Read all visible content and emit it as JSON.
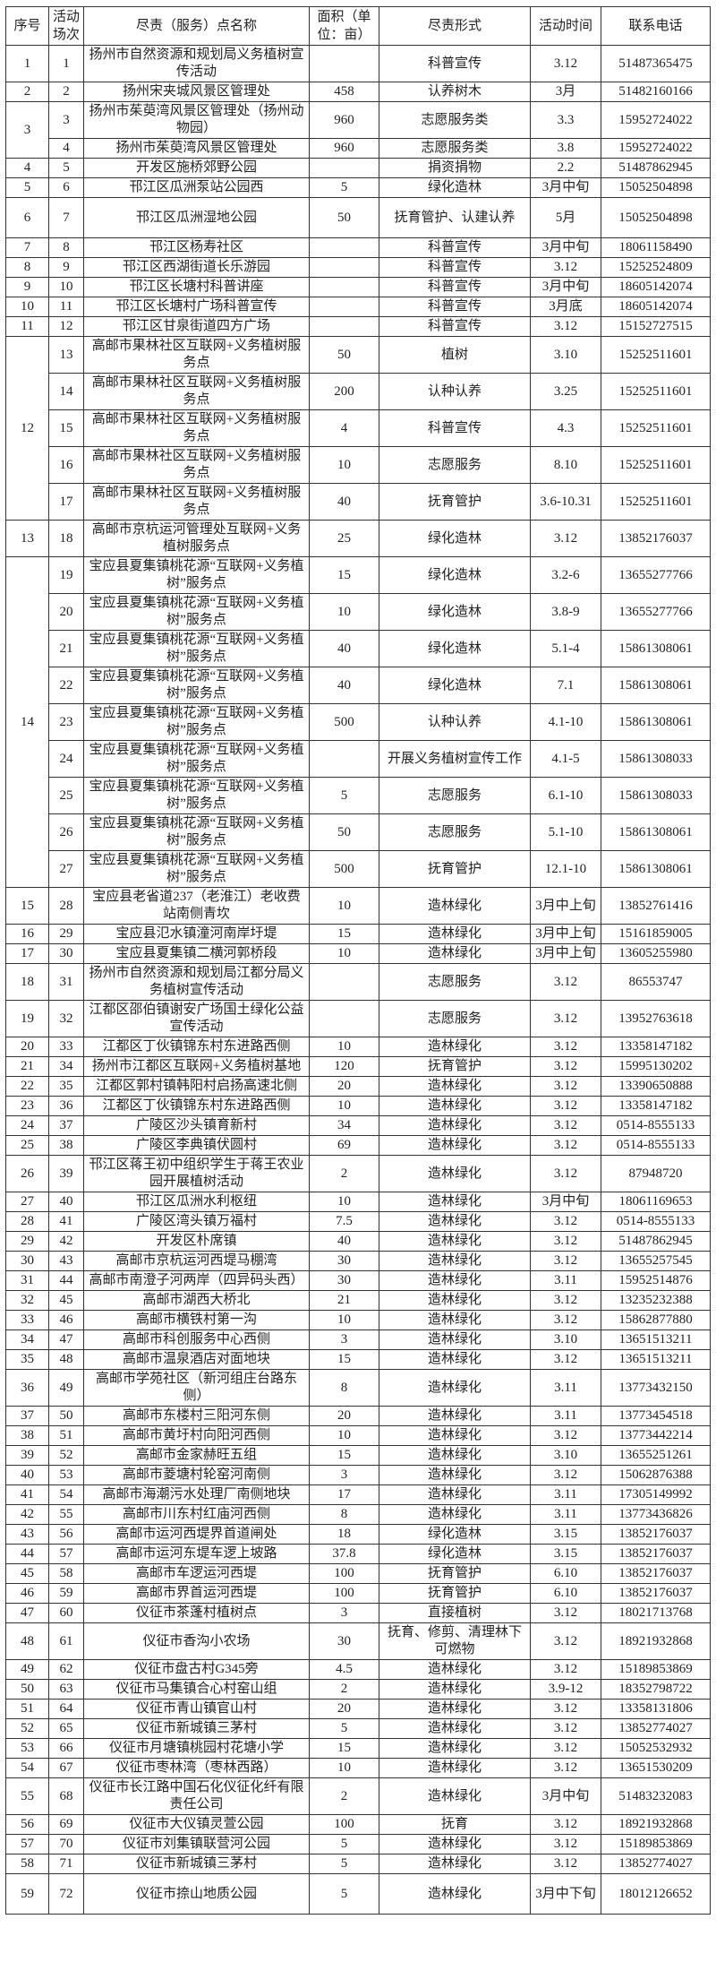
{
  "table": {
    "headers": [
      "序号",
      "活动场次",
      "尽责（服务）点名称",
      "面积（单位：亩）",
      "尽责形式",
      "活动时间",
      "联系电话"
    ],
    "groups": [
      {
        "seq": "1",
        "items": [
          [
            "1",
            "扬州市自然资源和规划局义务植树宣传活动",
            "",
            "科普宣传",
            "3.12",
            "51487365475"
          ]
        ]
      },
      {
        "seq": "2",
        "items": [
          [
            "2",
            "扬州宋夹城风景区管理处",
            "458",
            "认养树木",
            "3月",
            "51482160166"
          ]
        ]
      },
      {
        "seq": "3",
        "items": [
          [
            "3",
            "扬州市茱萸湾风景区管理处（扬州动物园）",
            "960",
            "志愿服务类",
            "3.3",
            "15952724022"
          ],
          [
            "4",
            "扬州市茱萸湾风景区管理处",
            "960",
            "志愿服务类",
            "3.8",
            "15952724022"
          ]
        ]
      },
      {
        "seq": "4",
        "items": [
          [
            "5",
            "开发区施桥郊野公园",
            "",
            "捐资捐物",
            "2.2",
            "51487862945"
          ]
        ]
      },
      {
        "seq": "5",
        "items": [
          [
            "6",
            "邗江区瓜洲泵站公园西",
            "5",
            "绿化造林",
            "3月中旬",
            "15052504898"
          ]
        ]
      },
      {
        "seq": "6",
        "items": [
          [
            "7",
            "邗江区瓜洲湿地公园",
            "50",
            "抚育管护、认建认养",
            "5月",
            "15052504898"
          ]
        ]
      },
      {
        "seq": "7",
        "items": [
          [
            "8",
            "邗江区杨寿社区",
            "",
            "科普宣传",
            "3月中旬",
            "18061158490"
          ]
        ]
      },
      {
        "seq": "8",
        "items": [
          [
            "9",
            "邗江区西湖街道长乐游园",
            "",
            "科普宣传",
            "3.12",
            "15252524809"
          ]
        ]
      },
      {
        "seq": "9",
        "items": [
          [
            "10",
            "邗江区长塘村科普讲座",
            "",
            "科普宣传",
            "3月中旬",
            "18605142074"
          ]
        ]
      },
      {
        "seq": "10",
        "items": [
          [
            "11",
            "邗江区长塘村广场科普宣传",
            "",
            "科普宣传",
            "3月底",
            "18605142074"
          ]
        ]
      },
      {
        "seq": "11",
        "items": [
          [
            "12",
            "邗江区甘泉街道四方广场",
            "",
            "科普宣传",
            "3.12",
            "15152727515"
          ]
        ]
      },
      {
        "seq": "12",
        "items": [
          [
            "13",
            "高邮市果林社区互联网+义务植树服务点",
            "50",
            "植树",
            "3.10",
            "15252511601"
          ],
          [
            "14",
            "高邮市果林社区互联网+义务植树服务点",
            "200",
            "认种认养",
            "3.25",
            "15252511601"
          ],
          [
            "15",
            "高邮市果林社区互联网+义务植树服务点",
            "4",
            "科普宣传",
            "4.3",
            "15252511601"
          ],
          [
            "16",
            "高邮市果林社区互联网+义务植树服务点",
            "10",
            "志愿服务",
            "8.10",
            "15252511601"
          ],
          [
            "17",
            "高邮市果林社区互联网+义务植树服务点",
            "40",
            "抚育管护",
            "3.6-10.31",
            "15252511601"
          ]
        ]
      },
      {
        "seq": "13",
        "items": [
          [
            "18",
            "高邮市京杭运河管理处互联网+义务植树服务点",
            "25",
            "绿化造林",
            "3.12",
            "13852176037"
          ]
        ]
      },
      {
        "seq": "14",
        "items": [
          [
            "19",
            "宝应县夏集镇桃花源“互联网+义务植树”服务点",
            "15",
            "绿化造林",
            "3.2-6",
            "13655277766"
          ],
          [
            "20",
            "宝应县夏集镇桃花源“互联网+义务植树”服务点",
            "10",
            "绿化造林",
            "3.8-9",
            "13655277766"
          ],
          [
            "21",
            "宝应县夏集镇桃花源“互联网+义务植树”服务点",
            "40",
            "绿化造林",
            "5.1-4",
            "15861308061"
          ],
          [
            "22",
            "宝应县夏集镇桃花源“互联网+义务植树”服务点",
            "40",
            "绿化造林",
            "7.1",
            "15861308061"
          ],
          [
            "23",
            "宝应县夏集镇桃花源“互联网+义务植树”服务点",
            "500",
            "认种认养",
            "4.1-10",
            "15861308061"
          ],
          [
            "24",
            "宝应县夏集镇桃花源“互联网+义务植树”服务点",
            "",
            "开展义务植树宣传工作",
            "4.1-5",
            "15861308033"
          ],
          [
            "25",
            "宝应县夏集镇桃花源“互联网+义务植树”服务点",
            "5",
            "志愿服务",
            "6.1-10",
            "15861308033"
          ],
          [
            "26",
            "宝应县夏集镇桃花源“互联网+义务植树”服务点",
            "50",
            "志愿服务",
            "5.1-10",
            "15861308061"
          ],
          [
            "27",
            "宝应县夏集镇桃花源“互联网+义务植树”服务点",
            "500",
            "抚育管护",
            "12.1-10",
            "15861308061"
          ]
        ]
      },
      {
        "seq": "15",
        "items": [
          [
            "28",
            "宝应县老省道237（老淮江）老收费站南侧青坎",
            "10",
            "造林绿化",
            "3月中上旬",
            "13852761416"
          ]
        ]
      },
      {
        "seq": "16",
        "items": [
          [
            "29",
            "宝应县氾水镇潼河南岸圩堤",
            "15",
            "造林绿化",
            "3月中上旬",
            "15161859005"
          ]
        ]
      },
      {
        "seq": "17",
        "items": [
          [
            "30",
            "宝应县夏集镇二横河郭桥段",
            "10",
            "造林绿化",
            "3月中上旬",
            "13605255980"
          ]
        ]
      },
      {
        "seq": "18",
        "items": [
          [
            "31",
            "扬州市自然资源和规划局江都分局义务植树宣传活动",
            "",
            "志愿服务",
            "3.12",
            "86553747"
          ]
        ]
      },
      {
        "seq": "19",
        "items": [
          [
            "32",
            "江都区邵伯镇谢安广场国土绿化公益宣传活动",
            "",
            "志愿服务",
            "3.12",
            "13952763618"
          ]
        ]
      },
      {
        "seq": "20",
        "items": [
          [
            "33",
            "江都区丁伙镇锦东村东进路西侧",
            "10",
            "造林绿化",
            "3.12",
            "13358147182"
          ]
        ]
      },
      {
        "seq": "21",
        "items": [
          [
            "34",
            "扬州市江都区互联网+义务植树基地",
            "120",
            "抚育管护",
            "3.12",
            "15995130202"
          ]
        ]
      },
      {
        "seq": "22",
        "items": [
          [
            "35",
            "江都区郭村镇韩阳村启扬高速北侧",
            "20",
            "造林绿化",
            "3.12",
            "13390650888"
          ]
        ]
      },
      {
        "seq": "23",
        "items": [
          [
            "36",
            "江都区丁伙镇锦东村东进路西侧",
            "10",
            "造林绿化",
            "3.12",
            "13358147182"
          ]
        ]
      },
      {
        "seq": "24",
        "items": [
          [
            "37",
            "广陵区沙头镇育新村",
            "34",
            "造林绿化",
            "3.12",
            "0514-8555133"
          ]
        ]
      },
      {
        "seq": "25",
        "items": [
          [
            "38",
            "广陵区李典镇伏圆村",
            "69",
            "造林绿化",
            "3.12",
            "0514-8555133"
          ]
        ]
      },
      {
        "seq": "26",
        "items": [
          [
            "39",
            "邗江区蒋王初中组织学生于蒋王农业园开展植树活动",
            "2",
            "造林绿化",
            "3.12",
            "87948720"
          ]
        ]
      },
      {
        "seq": "27",
        "items": [
          [
            "40",
            "邗江区瓜洲水利枢纽",
            "10",
            "造林绿化",
            "3月中旬",
            "18061169653"
          ]
        ]
      },
      {
        "seq": "28",
        "items": [
          [
            "41",
            "广陵区湾头镇万福村",
            "7.5",
            "造林绿化",
            "3.12",
            "0514-8555133"
          ]
        ]
      },
      {
        "seq": "29",
        "items": [
          [
            "42",
            "开发区朴席镇",
            "40",
            "造林绿化",
            "3.12",
            "51487862945"
          ]
        ]
      },
      {
        "seq": "30",
        "items": [
          [
            "43",
            "高邮市京杭运河西堤马棚湾",
            "30",
            "造林绿化",
            "3.12",
            "13655257545"
          ]
        ]
      },
      {
        "seq": "31",
        "items": [
          [
            "44",
            "高邮市南澄子河两岸（四异码头西）",
            "30",
            "造林绿化",
            "3.11",
            "15952514876"
          ]
        ]
      },
      {
        "seq": "32",
        "items": [
          [
            "45",
            "高邮市湖西大桥北",
            "21",
            "造林绿化",
            "3.12",
            "13235232388"
          ]
        ]
      },
      {
        "seq": "33",
        "items": [
          [
            "46",
            "高邮市横铁村第一沟",
            "10",
            "造林绿化",
            "3.12",
            "15862877880"
          ]
        ]
      },
      {
        "seq": "34",
        "items": [
          [
            "47",
            "高邮市科创服务中心西侧",
            "3",
            "造林绿化",
            "3.10",
            "13651513211"
          ]
        ]
      },
      {
        "seq": "35",
        "items": [
          [
            "48",
            "高邮市温泉酒店对面地块",
            "15",
            "造林绿化",
            "3.12",
            "13651513211"
          ]
        ]
      },
      {
        "seq": "36",
        "items": [
          [
            "49",
            "高邮市学苑社区（新河组庄台路东侧）",
            "8",
            "造林绿化",
            "3.11",
            "13773432150"
          ]
        ]
      },
      {
        "seq": "37",
        "items": [
          [
            "50",
            "高邮市东楼村三阳河东侧",
            "20",
            "造林绿化",
            "3.11",
            "13773454518"
          ]
        ]
      },
      {
        "seq": "38",
        "items": [
          [
            "51",
            "高邮市黄圩村向阳河西侧",
            "10",
            "造林绿化",
            "3.12",
            "13773442214"
          ]
        ]
      },
      {
        "seq": "39",
        "items": [
          [
            "52",
            "高邮市金家赫旺五组",
            "15",
            "造林绿化",
            "3.10",
            "13655251261"
          ]
        ]
      },
      {
        "seq": "40",
        "items": [
          [
            "53",
            "高邮市菱塘村轮窑河南侧",
            "3",
            "造林绿化",
            "3.12",
            "15062876388"
          ]
        ]
      },
      {
        "seq": "41",
        "items": [
          [
            "54",
            "高邮市海潮污水处理厂南侧地块",
            "17",
            "造林绿化",
            "3.11",
            "17305149992"
          ]
        ]
      },
      {
        "seq": "42",
        "items": [
          [
            "55",
            "高邮市川东村红庙河西侧",
            "8",
            "造林绿化",
            "3.11",
            "13773436826"
          ]
        ]
      },
      {
        "seq": "43",
        "items": [
          [
            "56",
            "高邮市运河西堤界首道闸处",
            "18",
            "绿化造林",
            "3.15",
            "13852176037"
          ]
        ]
      },
      {
        "seq": "44",
        "items": [
          [
            "57",
            "高邮市运河东堤车逻上坡路",
            "37.8",
            "绿化造林",
            "3.15",
            "13852176037"
          ]
        ]
      },
      {
        "seq": "45",
        "items": [
          [
            "58",
            "高邮市车逻运河西堤",
            "100",
            "抚育管护",
            "6.10",
            "13852176037"
          ]
        ]
      },
      {
        "seq": "46",
        "items": [
          [
            "59",
            "高邮市界首运河西堤",
            "100",
            "抚育管护",
            "6.10",
            "13852176037"
          ]
        ]
      },
      {
        "seq": "47",
        "items": [
          [
            "60",
            "仪征市茶蓬村植树点",
            "3",
            "直接植树",
            "3.12",
            "18021713768"
          ]
        ]
      },
      {
        "seq": "48",
        "items": [
          [
            "61",
            "仪征市香沟小农场",
            "30",
            "抚育、修剪、清理林下可燃物",
            "3.12",
            "18921932868"
          ]
        ]
      },
      {
        "seq": "49",
        "items": [
          [
            "62",
            "仪征市盘古村G345旁",
            "4.5",
            "造林绿化",
            "3.12",
            "15189853869"
          ]
        ]
      },
      {
        "seq": "50",
        "items": [
          [
            "63",
            "仪征市马集镇合心村窑山组",
            "2",
            "造林绿化",
            "3.9-12",
            "18352798722"
          ]
        ]
      },
      {
        "seq": "51",
        "items": [
          [
            "64",
            "仪征市青山镇官山村",
            "20",
            "造林绿化",
            "3.12",
            "13358131806"
          ]
        ]
      },
      {
        "seq": "52",
        "items": [
          [
            "65",
            "仪征市新城镇三茅村",
            "5",
            "造林绿化",
            "3.12",
            "13852774027"
          ]
        ]
      },
      {
        "seq": "53",
        "items": [
          [
            "66",
            "仪征市月塘镇桃园村花塘小学",
            "15",
            "造林绿化",
            "3.12",
            "15052532932"
          ]
        ]
      },
      {
        "seq": "54",
        "items": [
          [
            "67",
            "仪征市枣林湾（枣林西路）",
            "10",
            "造林绿化",
            "3.12",
            "13651530209"
          ]
        ]
      },
      {
        "seq": "55",
        "items": [
          [
            "68",
            "仪征市长江路中国石化仪征化纤有限责任公司",
            "2",
            "造林绿化",
            "3月中旬",
            "51483232083"
          ]
        ]
      },
      {
        "seq": "56",
        "items": [
          [
            "69",
            "仪征市大仪镇灵萱公园",
            "100",
            "抚育",
            "3.12",
            "18921932868"
          ]
        ]
      },
      {
        "seq": "57",
        "items": [
          [
            "70",
            "仪征市刘集镇联营河公园",
            "5",
            "造林绿化",
            "3.12",
            "15189853869"
          ]
        ]
      },
      {
        "seq": "58",
        "items": [
          [
            "71",
            "仪征市新城镇三茅村",
            "5",
            "造林绿化",
            "3.12",
            "13852774027"
          ]
        ]
      },
      {
        "seq": "59",
        "items": [
          [
            "72",
            "仪征市捺山地质公园",
            "5",
            "造林绿化",
            "3月中下旬",
            "18012126652"
          ]
        ]
      }
    ]
  }
}
